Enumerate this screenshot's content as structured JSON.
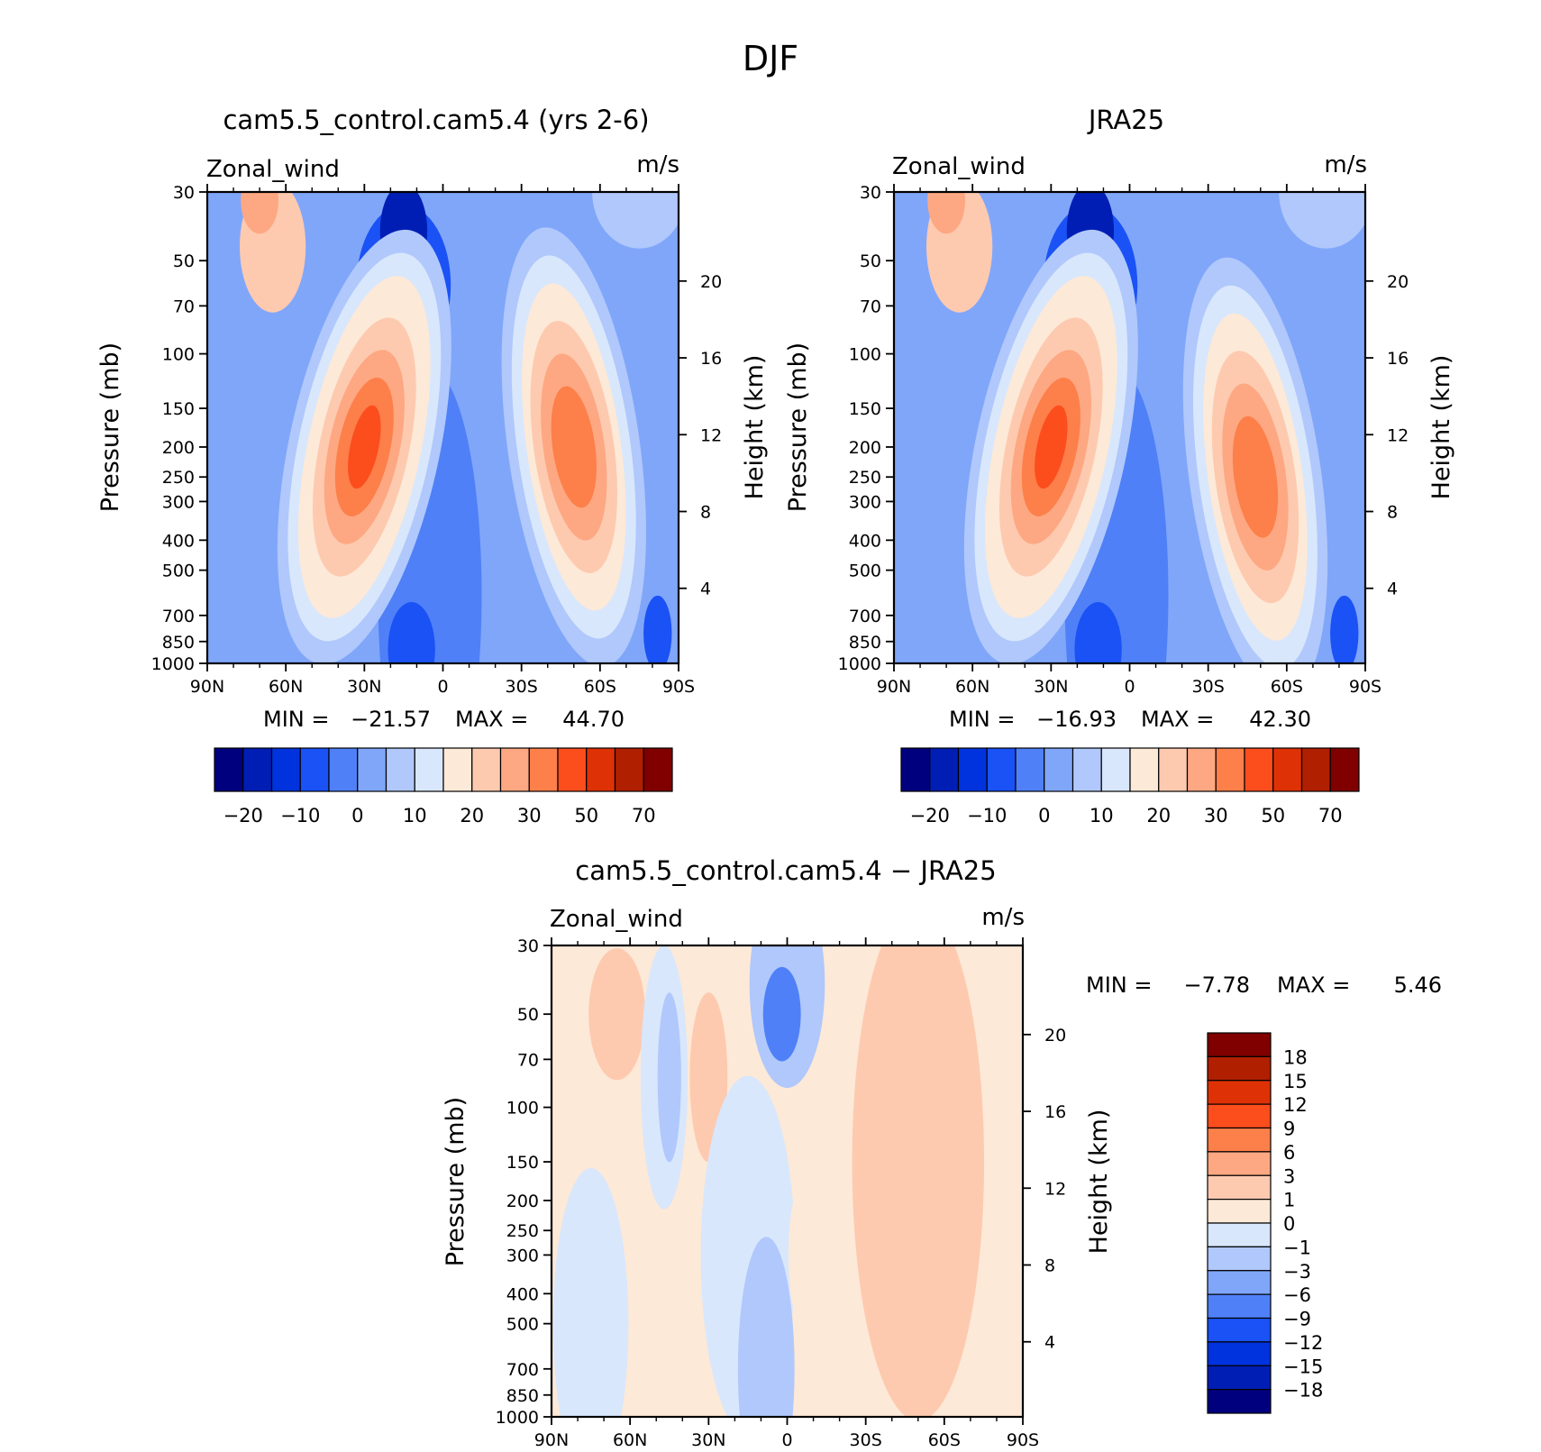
{
  "title": "DJF",
  "chart_data": [
    {
      "type": "heatmap",
      "title": "cam5.5_control.cam5.4 (yrs 2-6)",
      "variable": "Zonal_wind",
      "units": "m/s",
      "ylabel": "Pressure (mb)",
      "ylabel_right": "Height (km)",
      "x_ticks": [
        "90N",
        "60N",
        "30N",
        "0",
        "30S",
        "60S",
        "90S"
      ],
      "y_ticks": [
        "30",
        "50",
        "70",
        "100",
        "150",
        "200",
        "250",
        "300",
        "400",
        "500",
        "700",
        "850",
        "1000"
      ],
      "y_ticks_right": [
        "20",
        "16",
        "12",
        "8",
        "4"
      ],
      "min_label": "MIN =",
      "min_value": "−21.57",
      "max_label": "MAX =",
      "max_value": "44.70",
      "colorbar_ticks": [
        "−20",
        "−10",
        "0",
        "10",
        "20",
        "30",
        "50",
        "70"
      ],
      "jets": [
        {
          "lat": 30,
          "pressure": 200,
          "value": 44.7
        },
        {
          "lat": -50,
          "pressure": 200,
          "value": 38
        }
      ]
    },
    {
      "type": "heatmap",
      "title": "JRA25",
      "variable": "Zonal_wind",
      "units": "m/s",
      "ylabel": "Pressure (mb)",
      "ylabel_right": "Height (km)",
      "x_ticks": [
        "90N",
        "60N",
        "30N",
        "0",
        "30S",
        "60S",
        "90S"
      ],
      "y_ticks": [
        "30",
        "50",
        "70",
        "100",
        "150",
        "200",
        "250",
        "300",
        "400",
        "500",
        "700",
        "850",
        "1000"
      ],
      "y_ticks_right": [
        "20",
        "16",
        "12",
        "8",
        "4"
      ],
      "min_label": "MIN =",
      "min_value": "−16.93",
      "max_label": "MAX =",
      "max_value": "42.30",
      "colorbar_ticks": [
        "−20",
        "−10",
        "0",
        "10",
        "20",
        "30",
        "50",
        "70"
      ],
      "jets": [
        {
          "lat": 30,
          "pressure": 200,
          "value": 42.3
        },
        {
          "lat": -48,
          "pressure": 250,
          "value": 36
        }
      ]
    },
    {
      "type": "heatmap",
      "title": "cam5.5_control.cam5.4 − JRA25",
      "variable": "Zonal_wind",
      "units": "m/s",
      "ylabel": "Pressure (mb)",
      "ylabel_right": "Height (km)",
      "x_ticks": [
        "90N",
        "60N",
        "30N",
        "0",
        "30S",
        "60S",
        "90S"
      ],
      "y_ticks": [
        "30",
        "50",
        "70",
        "100",
        "150",
        "200",
        "250",
        "300",
        "400",
        "500",
        "700",
        "850",
        "1000"
      ],
      "y_ticks_right": [
        "20",
        "16",
        "12",
        "8",
        "4"
      ],
      "min_label": "MIN =",
      "min_value": "−7.78",
      "max_label": "MAX =",
      "max_value": "5.46",
      "colorbar_ticks": [
        "18",
        "15",
        "12",
        "9",
        "6",
        "3",
        "1",
        "0",
        "−1",
        "−3",
        "−6",
        "−9",
        "−12",
        "−15",
        "−18"
      ]
    }
  ],
  "colors": {
    "palette": [
      "#00007f",
      "#001eb4",
      "#0033dd",
      "#1a52f5",
      "#4f80f7",
      "#80a6fa",
      "#b0c8fb",
      "#d8e7fc",
      "#fde9d7",
      "#fdcab0",
      "#fda882",
      "#fd7f4a",
      "#fc4d1d",
      "#de3206",
      "#b01f00",
      "#800000"
    ]
  }
}
